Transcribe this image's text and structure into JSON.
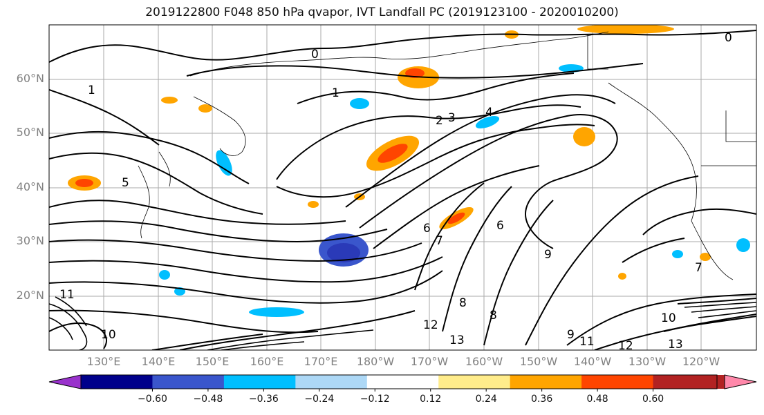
{
  "title": "2019122800 F048 850 hPa qvapor, IVT Landfall PC (2019123100 - 2020010200)",
  "map": {
    "lat_labels": [
      "60°N",
      "50°N",
      "40°N",
      "30°N",
      "20°N"
    ],
    "lon_labels": [
      "130°E",
      "140°E",
      "150°E",
      "160°E",
      "170°E",
      "180°W",
      "170°W",
      "160°W",
      "150°W",
      "140°W",
      "130°W",
      "120°W"
    ],
    "contour_labels": [
      "0",
      "0",
      "1",
      "1",
      "2",
      "3",
      "4",
      "5",
      "6",
      "6",
      "7",
      "7",
      "8",
      "8",
      "9",
      "9",
      "10",
      "10",
      "11",
      "11",
      "12",
      "12",
      "13",
      "13"
    ]
  },
  "colorbar": {
    "colors": [
      "#9932cc",
      "#00008b",
      "#3a56cc",
      "#00bfff",
      "#add8f6",
      "#ffffff",
      "#ffec8b",
      "#ffa500",
      "#ff4500",
      "#b22222",
      "#ff88aa"
    ],
    "tick_labels": [
      "−0.60",
      "−0.48",
      "−0.36",
      "−0.24",
      "−0.12",
      "0.12",
      "0.24",
      "0.36",
      "0.48",
      "0.60"
    ]
  }
}
